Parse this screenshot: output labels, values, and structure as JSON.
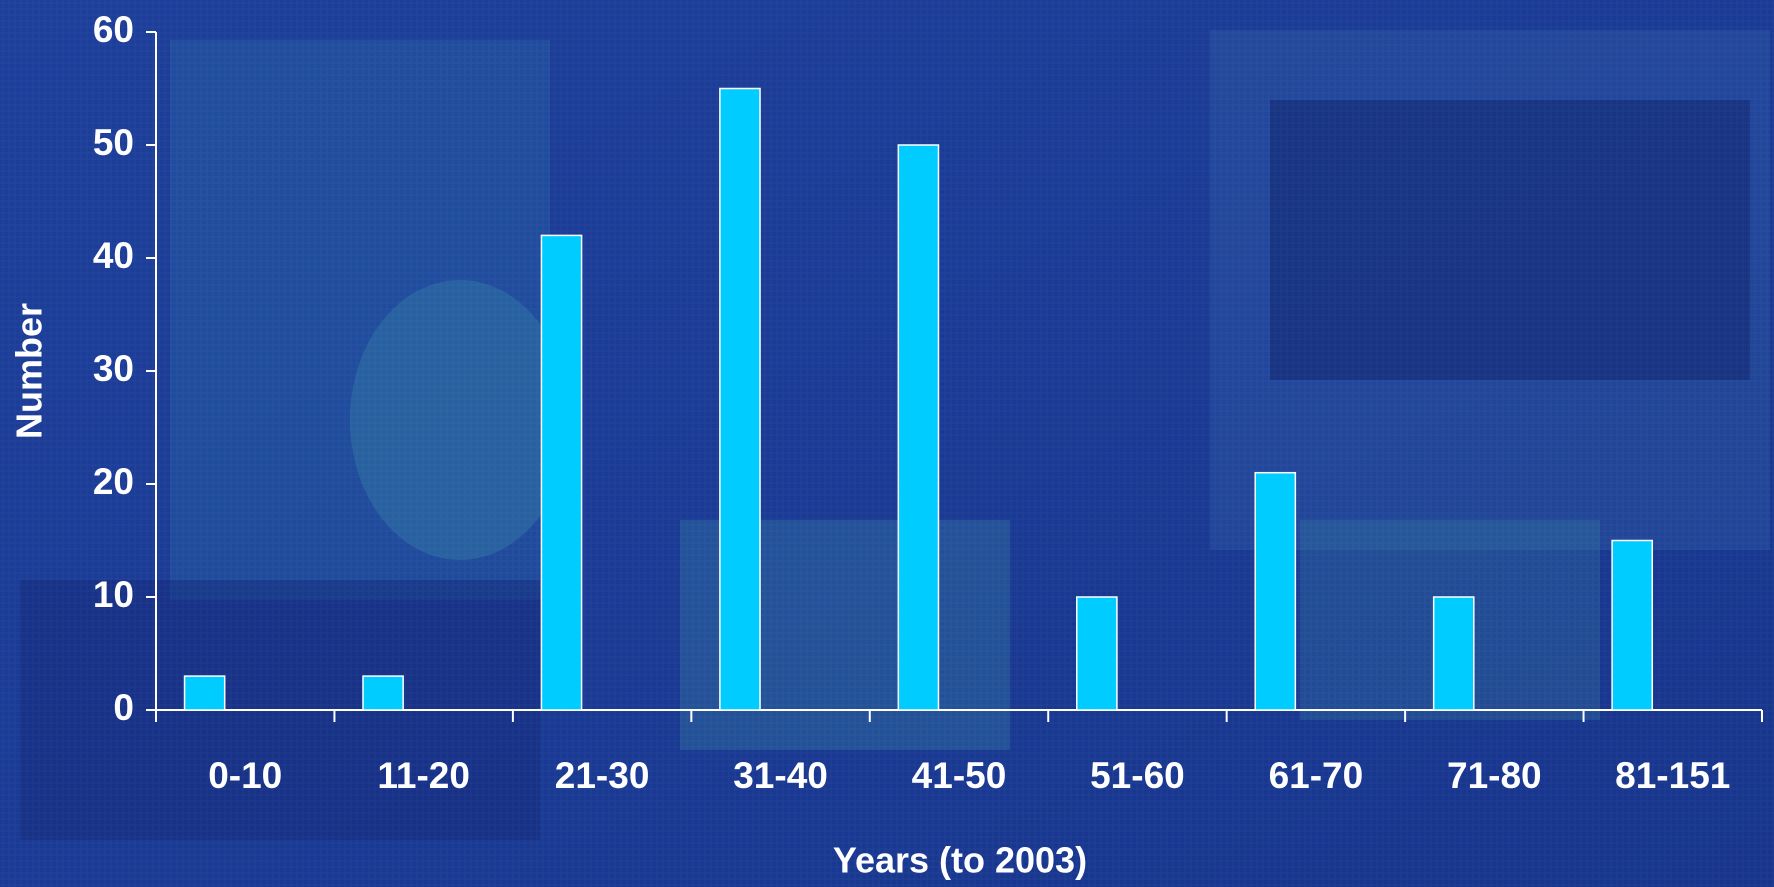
{
  "chart_data": {
    "type": "bar",
    "x_label": "Years (to 2003)",
    "y_label": "Number",
    "categories": [
      "0-10",
      "11-20",
      "21-30",
      "31-40",
      "41-50",
      "51-60",
      "61-70",
      "71-80",
      "81-151"
    ],
    "values": [
      3,
      3,
      42,
      55,
      50,
      10,
      21,
      10,
      15
    ],
    "color": "#00ccff",
    "ylim": [
      0,
      60
    ],
    "yticks": [
      0,
      10,
      20,
      30,
      40,
      50,
      60
    ],
    "grid": false
  }
}
